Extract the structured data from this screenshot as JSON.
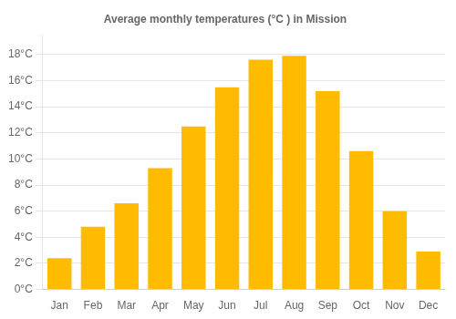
{
  "chart_data": {
    "type": "bar",
    "title": "Average monthly temperatures (°C ) in Mission",
    "categories": [
      "Jan",
      "Feb",
      "Mar",
      "Apr",
      "May",
      "Jun",
      "Jul",
      "Aug",
      "Sep",
      "Oct",
      "Nov",
      "Dec"
    ],
    "values": [
      2.4,
      4.8,
      6.6,
      9.3,
      12.5,
      15.5,
      17.6,
      17.9,
      15.2,
      10.6,
      6.0,
      2.9
    ],
    "color": "#FFBB00",
    "ylim": [
      0,
      19.5
    ],
    "yticks": [
      {
        "value": 0,
        "label": "0°C"
      },
      {
        "value": 2,
        "label": "2°C"
      },
      {
        "value": 4,
        "label": "4°C"
      },
      {
        "value": 6,
        "label": "6°C"
      },
      {
        "value": 8,
        "label": "8°C"
      },
      {
        "value": 10,
        "label": "10°C"
      },
      {
        "value": 12,
        "label": "12°C"
      },
      {
        "value": 14,
        "label": "14°C"
      },
      {
        "value": 16,
        "label": "16°C"
      },
      {
        "value": 18,
        "label": "18°C"
      }
    ],
    "grid": true
  }
}
